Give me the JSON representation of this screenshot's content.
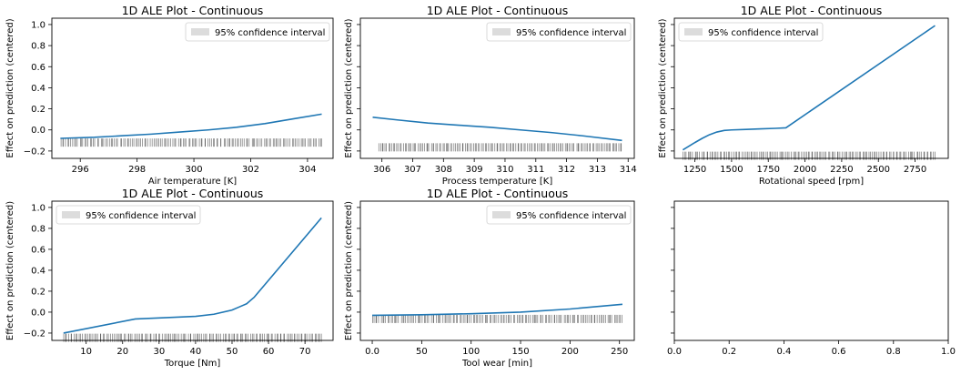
{
  "colors": {
    "line": "#1f77b4",
    "rug": "#000000",
    "ci_fill": "#dcdcdc",
    "axes_edge": "#000000"
  },
  "legend_label": "95% confidence interval",
  "chart_data": [
    {
      "type": "line",
      "title": "1D ALE Plot - Continuous",
      "xlabel": "Air temperature [K]",
      "ylabel": "Effect on prediction (centered)",
      "xlim": [
        295.0,
        304.9
      ],
      "ylim": [
        -0.27,
        1.06
      ],
      "xticks": [
        296,
        298,
        300,
        302,
        304
      ],
      "yticks": [
        -0.2,
        0.0,
        0.2,
        0.4,
        0.6,
        0.8,
        1.0
      ],
      "ytick_labels_visible": true,
      "legend": "upper right",
      "rug_y": -0.12,
      "rug_range": [
        295.3,
        304.5
      ],
      "series": [
        {
          "x": [
            295.3,
            296.5,
            297.5,
            298.5,
            299.5,
            300.5,
            301.5,
            302.5,
            303.5,
            304.5
          ],
          "values": [
            -0.08,
            -0.07,
            -0.055,
            -0.04,
            -0.02,
            0.0,
            0.025,
            0.06,
            0.105,
            0.15
          ]
        }
      ]
    },
    {
      "type": "line",
      "title": "1D ALE Plot - Continuous",
      "xlabel": "Process temperature [K]",
      "ylabel": "Effect on prediction (centered)",
      "xlim": [
        305.3,
        314.2
      ],
      "ylim": [
        -0.27,
        1.06
      ],
      "xticks": [
        306,
        307,
        308,
        309,
        310,
        311,
        312,
        313,
        314
      ],
      "yticks": [
        -0.2,
        0.0,
        0.2,
        0.4,
        0.6,
        0.8,
        1.0
      ],
      "ytick_labels_visible": false,
      "legend": "upper right",
      "rug_y": -0.165,
      "rug_range": [
        305.9,
        313.8
      ],
      "series": [
        {
          "x": [
            305.7,
            306.5,
            307.5,
            308.5,
            309.5,
            310.5,
            311.5,
            312.5,
            313.8
          ],
          "values": [
            0.12,
            0.095,
            0.065,
            0.045,
            0.025,
            0.0,
            -0.025,
            -0.055,
            -0.1
          ]
        }
      ]
    },
    {
      "type": "line",
      "title": "1D ALE Plot - Continuous",
      "xlabel": "Rotational speed [rpm]",
      "ylabel": "Effect on prediction (centered)",
      "xlim": [
        1110,
        2976
      ],
      "ylim": [
        -0.27,
        1.06
      ],
      "xticks": [
        1250,
        1500,
        1750,
        2000,
        2250,
        2500,
        2750
      ],
      "yticks": [
        -0.2,
        0.0,
        0.2,
        0.4,
        0.6,
        0.8,
        1.0
      ],
      "ytick_labels_visible": false,
      "legend": "upper left",
      "rug_y": -0.245,
      "rug_range": [
        1168,
        2886
      ],
      "series": [
        {
          "x": [
            1168,
            1250,
            1300,
            1350,
            1400,
            1450,
            1500,
            1600,
            1700,
            1800,
            1870,
            2886
          ],
          "values": [
            -0.19,
            -0.12,
            -0.08,
            -0.045,
            -0.02,
            -0.005,
            0.0,
            0.005,
            0.01,
            0.015,
            0.02,
            0.99
          ]
        }
      ]
    },
    {
      "type": "line",
      "title": "1D ALE Plot - Continuous",
      "xlabel": "Torque [Nm]",
      "ylabel": "Effect on prediction (centered)",
      "xlim": [
        0.6,
        77.7
      ],
      "ylim": [
        -0.27,
        1.06
      ],
      "xticks": [
        10,
        20,
        30,
        40,
        50,
        60,
        70
      ],
      "yticks": [
        -0.2,
        0.0,
        0.2,
        0.4,
        0.6,
        0.8,
        1.0
      ],
      "ytick_labels_visible": true,
      "legend": "upper left",
      "rug_y": -0.245,
      "rug_range": [
        3.8,
        74.5
      ],
      "series": [
        {
          "x": [
            3.8,
            23.5,
            30,
            40,
            45,
            50,
            52,
            54,
            56,
            74.5
          ],
          "values": [
            -0.2,
            -0.065,
            -0.055,
            -0.04,
            -0.02,
            0.02,
            0.05,
            0.08,
            0.14,
            0.9
          ]
        }
      ]
    },
    {
      "type": "line",
      "title": "1D ALE Plot - Continuous",
      "xlabel": "Tool wear [min]",
      "ylabel": "Effect on prediction (centered)",
      "xlim": [
        -12,
        265
      ],
      "ylim": [
        -0.27,
        1.06
      ],
      "xticks": [
        0,
        50,
        100,
        150,
        200,
        250
      ],
      "yticks": [
        -0.2,
        0.0,
        0.2,
        0.4,
        0.6,
        0.8,
        1.0
      ],
      "ytick_labels_visible": false,
      "legend": "upper right",
      "rug_y": -0.065,
      "rug_range": [
        0,
        253
      ],
      "series": [
        {
          "x": [
            0,
            50,
            100,
            150,
            200,
            253
          ],
          "values": [
            -0.03,
            -0.025,
            -0.015,
            0.0,
            0.03,
            0.075
          ]
        }
      ]
    },
    {
      "type": "line",
      "title": "",
      "xlabel": "",
      "ylabel": "",
      "xlim": [
        0.0,
        1.0
      ],
      "ylim": [
        -0.27,
        1.06
      ],
      "xticks": [
        0.0,
        0.2,
        0.4,
        0.6,
        0.8,
        1.0
      ],
      "xtick_labels": [
        "0.0",
        "0.2",
        "0.4",
        "0.6",
        "0.8",
        "1.0"
      ],
      "yticks": [
        -0.2,
        0.0,
        0.2,
        0.4,
        0.6,
        0.8,
        1.0
      ],
      "ytick_labels_visible": false,
      "legend": "none",
      "series": []
    }
  ]
}
